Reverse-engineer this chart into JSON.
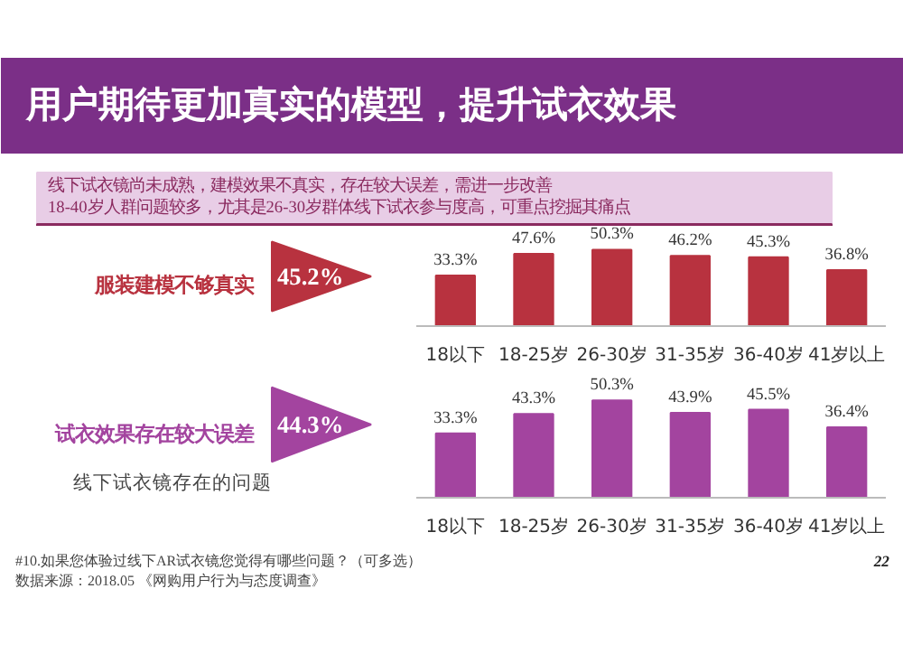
{
  "chart_data": [
    {
      "type": "bar",
      "title": "用户期待更加真实的模型，提升试衣效果",
      "subtitle": "线下试衣镜尚未成熟，建模效果不真实，存在较大误差，需进一步改善\n18-40岁人群问题较多，尤其是26-30岁群体线下试衣参与度高，可重点挖掘其痛点",
      "categories": [
        "18以下",
        "18-25岁",
        "26-30岁",
        "31-35岁",
        "36-40岁",
        "41岁以上"
      ],
      "values": [
        33.3,
        47.6,
        50.3,
        46.2,
        45.3,
        36.8
      ],
      "value_labels": [
        "33.3%",
        "47.6%",
        "50.3%",
        "46.2%",
        "45.3%",
        "36.8%"
      ],
      "color": "#b8323f",
      "annotations": [
        "服装建模不够真实",
        "45.2%"
      ]
    },
    {
      "type": "bar",
      "categories": [
        "18以下",
        "18-25岁",
        "26-30岁",
        "31-35岁",
        "36-40岁",
        "41岁以上"
      ],
      "values": [
        33.3,
        43.3,
        50.3,
        43.9,
        45.5,
        36.4
      ],
      "value_labels": [
        "33.3%",
        "43.3%",
        "50.3%",
        "43.9%",
        "45.5%",
        "36.4%"
      ],
      "color": "#a3449f",
      "annotations": [
        "试衣效果存在较大误差",
        "44.3%",
        "线下试衣镜存在的问题",
        "#10.如果您体验过线下AR试衣镜您觉得有哪些问题？（可多选）",
        "数据来源：2018.05 《网购用户行为与态度调查》",
        "22"
      ]
    }
  ]
}
